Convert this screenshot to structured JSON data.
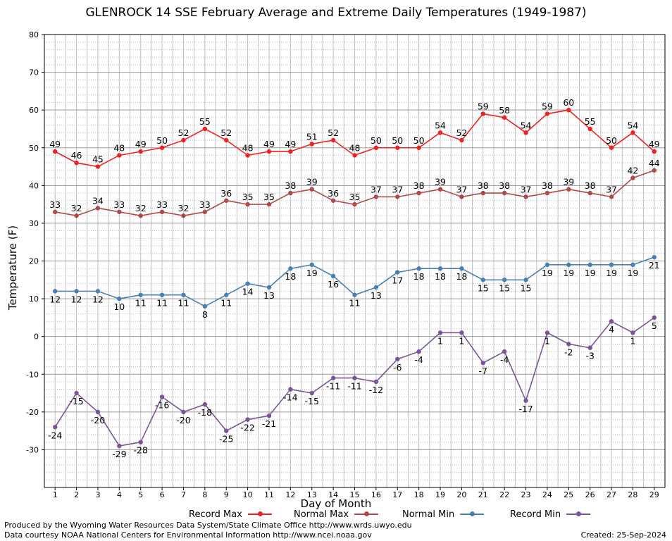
{
  "title": "GLENROCK 14 SSE February Average and Extreme Daily Temperatures (1949-1987)",
  "footer": {
    "produced_by": "Produced by the Wyoming Water Resources Data System/State Climate Office http://www.wrds.uwyo.edu",
    "data_courtesy": "Data courtesy NOAA National Centers for Environmental Information http://www.ncei.noaa.gov",
    "created": "Created: 25-Sep-2024"
  },
  "chart_data": {
    "type": "line",
    "title": "GLENROCK 14 SSE February Average and Extreme Daily Temperatures (1949-1987)",
    "xlabel": "Day of Month",
    "ylabel": "Temperature (F)",
    "x": [
      1,
      2,
      3,
      4,
      5,
      6,
      7,
      8,
      9,
      10,
      11,
      12,
      13,
      14,
      15,
      16,
      17,
      18,
      19,
      20,
      21,
      22,
      23,
      24,
      25,
      26,
      27,
      28,
      29
    ],
    "xlim": [
      0.5,
      29.5
    ],
    "ylim": [
      -40,
      80
    ],
    "yticks": [
      -30,
      -20,
      -10,
      0,
      10,
      20,
      30,
      40,
      50,
      60,
      70,
      80
    ],
    "grid": true,
    "legend_position": "bottom",
    "series": [
      {
        "name": "Record Max",
        "color": "#ee2222",
        "label_pos": "above",
        "values": [
          49,
          46,
          45,
          48,
          49,
          50,
          52,
          55,
          52,
          48,
          49,
          49,
          51,
          52,
          48,
          50,
          50,
          50,
          54,
          52,
          59,
          58,
          54,
          59,
          60,
          55,
          50,
          54,
          49
        ]
      },
      {
        "name": "Normal Max",
        "color": "#b04a4a",
        "label_pos": "above",
        "values": [
          33,
          32,
          34,
          33,
          32,
          33,
          32,
          33,
          36,
          35,
          35,
          38,
          39,
          36,
          35,
          37,
          37,
          38,
          39,
          37,
          38,
          38,
          37,
          38,
          39,
          38,
          37,
          42,
          44
        ]
      },
      {
        "name": "Normal Min",
        "color": "#4a7fb5",
        "label_pos": "below",
        "values": [
          12,
          12,
          12,
          10,
          11,
          11,
          11,
          8,
          11,
          14,
          13,
          18,
          19,
          16,
          11,
          13,
          17,
          18,
          18,
          18,
          15,
          15,
          15,
          19,
          19,
          19,
          19,
          19,
          21
        ]
      },
      {
        "name": "Record Min",
        "color": "#7a559a",
        "label_pos": "below",
        "values": [
          -24,
          -15,
          -20,
          -29,
          -28,
          -16,
          -20,
          -18,
          -25,
          -22,
          -21,
          -14,
          -15,
          -11,
          -11,
          -12,
          -6,
          -4,
          1,
          1,
          -7,
          -4,
          -17,
          1,
          -2,
          -3,
          4,
          1,
          5
        ]
      }
    ]
  }
}
